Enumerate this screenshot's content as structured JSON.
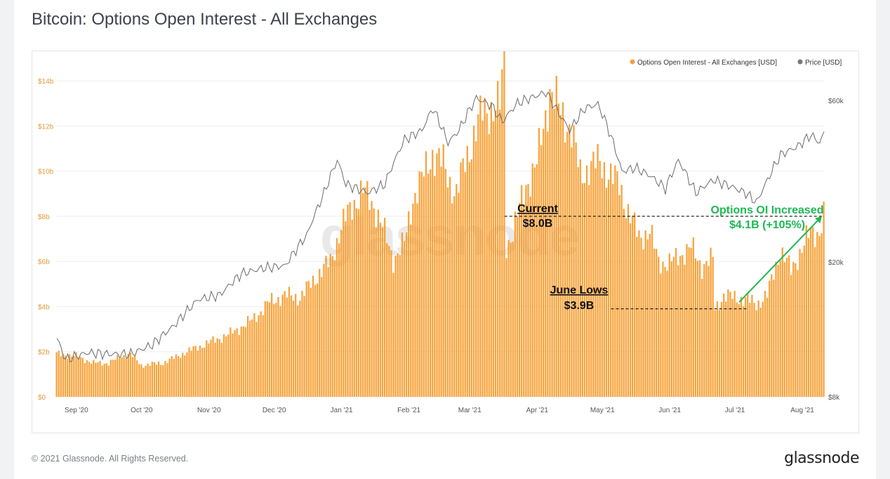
{
  "title": "Bitcoin: Options Open Interest - All Exchanges",
  "footer": {
    "copyright": "© 2021 Glassnode. All Rights Reserved.",
    "brand": "glassnode"
  },
  "watermark": "glassnode",
  "colors": {
    "bar": "#f7931a",
    "price_line": "#6b6b6b",
    "left_axis": "#e59a3b",
    "annotation_green": "#1db954",
    "grid": "#eeeeee"
  },
  "chart_data": {
    "type": "bar",
    "x_range": [
      "2020-09-01",
      "2021-08-20"
    ],
    "x_ticks": [
      {
        "date": "2020-09-10",
        "label": "Sep '20"
      },
      {
        "date": "2020-10-10",
        "label": "Oct '20"
      },
      {
        "date": "2020-11-10",
        "label": "Nov '20"
      },
      {
        "date": "2020-12-10",
        "label": "Dec '20"
      },
      {
        "date": "2021-01-10",
        "label": "Jan '21"
      },
      {
        "date": "2021-02-10",
        "label": "Feb '21"
      },
      {
        "date": "2021-03-10",
        "label": "Mar '21"
      },
      {
        "date": "2021-04-10",
        "label": "Apr '21"
      },
      {
        "date": "2021-05-10",
        "label": "May '21"
      },
      {
        "date": "2021-06-10",
        "label": "Jun '21"
      },
      {
        "date": "2021-07-10",
        "label": "Jul '21"
      },
      {
        "date": "2021-08-10",
        "label": "Aug '21"
      }
    ],
    "y_left": {
      "range": [
        0,
        15
      ],
      "ticks": [
        {
          "value": 0,
          "label": "$0"
        },
        {
          "value": 2,
          "label": "$2b"
        },
        {
          "value": 4,
          "label": "$4b"
        },
        {
          "value": 6,
          "label": "$6b"
        },
        {
          "value": 8,
          "label": "$8b"
        },
        {
          "value": 10,
          "label": "$10b"
        },
        {
          "value": 12,
          "label": "$12b"
        },
        {
          "value": 14,
          "label": "$14b"
        }
      ]
    },
    "y_right": {
      "scale": "log",
      "range": [
        8000,
        80000
      ],
      "ticks": [
        {
          "value": 8000,
          "label": "$8k"
        },
        {
          "value": 20000,
          "label": "$20k"
        },
        {
          "value": 60000,
          "label": "$60k"
        }
      ]
    },
    "grid": true,
    "legend_position": "top-right",
    "series": [
      {
        "name": "Options Open Interest - All Exchanges [USD]",
        "kind": "bar",
        "axis": "left",
        "unit": "billion USD",
        "values_daily_from": "2020-09-01",
        "keypoints": [
          [
            "2020-09-01",
            1.9
          ],
          [
            "2020-09-10",
            1.8
          ],
          [
            "2020-09-18",
            1.5
          ],
          [
            "2020-09-25",
            1.5
          ],
          [
            "2020-10-01",
            1.8
          ],
          [
            "2020-10-05",
            1.9
          ],
          [
            "2020-10-10",
            1.4
          ],
          [
            "2020-10-20",
            1.5
          ],
          [
            "2020-10-31",
            2.0
          ],
          [
            "2020-11-10",
            2.4
          ],
          [
            "2020-11-20",
            2.8
          ],
          [
            "2020-11-30",
            3.4
          ],
          [
            "2020-12-08",
            4.2
          ],
          [
            "2020-12-15",
            4.5
          ],
          [
            "2020-12-22",
            4.4
          ],
          [
            "2020-12-31",
            5.5
          ],
          [
            "2021-01-05",
            6.0
          ],
          [
            "2021-01-10",
            7.5
          ],
          [
            "2021-01-15",
            8.5
          ],
          [
            "2021-01-20",
            9.1
          ],
          [
            "2021-01-25",
            8.5
          ],
          [
            "2021-01-29",
            7.5
          ],
          [
            "2021-02-03",
            6.1
          ],
          [
            "2021-02-08",
            6.8
          ],
          [
            "2021-02-12",
            8.8
          ],
          [
            "2021-02-16",
            9.6
          ],
          [
            "2021-02-21",
            10.8
          ],
          [
            "2021-02-26",
            10.3
          ],
          [
            "2021-03-01",
            9.5
          ],
          [
            "2021-03-04",
            9.0
          ],
          [
            "2021-03-08",
            10.4
          ],
          [
            "2021-03-12",
            11.6
          ],
          [
            "2021-03-16",
            12.6
          ],
          [
            "2021-03-20",
            12.8
          ],
          [
            "2021-03-24",
            12.9
          ],
          [
            "2021-03-26",
            14.9
          ],
          [
            "2021-03-27",
            6.7
          ],
          [
            "2021-03-30",
            7.3
          ],
          [
            "2021-04-05",
            9.4
          ],
          [
            "2021-04-10",
            10.3
          ],
          [
            "2021-04-16",
            13.6
          ],
          [
            "2021-04-21",
            12.6
          ],
          [
            "2021-04-26",
            11.8
          ],
          [
            "2021-04-30",
            9.8
          ],
          [
            "2021-05-04",
            10.2
          ],
          [
            "2021-05-09",
            10.4
          ],
          [
            "2021-05-14",
            9.8
          ],
          [
            "2021-05-18",
            9.4
          ],
          [
            "2021-05-22",
            8.2
          ],
          [
            "2021-05-27",
            7.1
          ],
          [
            "2021-06-01",
            7.3
          ],
          [
            "2021-06-05",
            6.0
          ],
          [
            "2021-06-10",
            5.9
          ],
          [
            "2021-06-15",
            6.3
          ],
          [
            "2021-06-20",
            6.6
          ],
          [
            "2021-06-25",
            5.8
          ],
          [
            "2021-06-30",
            6.1
          ],
          [
            "2021-07-01",
            3.9
          ],
          [
            "2021-07-05",
            4.5
          ],
          [
            "2021-07-10",
            4.4
          ],
          [
            "2021-07-16",
            4.3
          ],
          [
            "2021-07-20",
            4.1
          ],
          [
            "2021-07-25",
            4.5
          ],
          [
            "2021-07-31",
            6.5
          ],
          [
            "2021-08-05",
            5.6
          ],
          [
            "2021-08-09",
            6.4
          ],
          [
            "2021-08-14",
            7.3
          ],
          [
            "2021-08-18",
            7.3
          ],
          [
            "2021-08-20",
            8.0
          ]
        ]
      },
      {
        "name": "Price [USD]",
        "kind": "line",
        "axis": "right",
        "unit": "USD",
        "keypoints": [
          [
            "2020-09-01",
            11900
          ],
          [
            "2020-09-05",
            10300
          ],
          [
            "2020-09-15",
            10800
          ],
          [
            "2020-09-25",
            10700
          ],
          [
            "2020-10-05",
            10700
          ],
          [
            "2020-10-15",
            11400
          ],
          [
            "2020-10-25",
            13000
          ],
          [
            "2020-11-05",
            15500
          ],
          [
            "2020-11-15",
            16000
          ],
          [
            "2020-11-25",
            18500
          ],
          [
            "2020-12-05",
            19200
          ],
          [
            "2020-12-15",
            19500
          ],
          [
            "2020-12-25",
            24000
          ],
          [
            "2021-01-02",
            32000
          ],
          [
            "2021-01-08",
            40000
          ],
          [
            "2021-01-12",
            34000
          ],
          [
            "2021-01-22",
            32000
          ],
          [
            "2021-01-30",
            34000
          ],
          [
            "2021-02-08",
            46000
          ],
          [
            "2021-02-16",
            49000
          ],
          [
            "2021-02-21",
            57000
          ],
          [
            "2021-02-28",
            45000
          ],
          [
            "2021-03-05",
            49000
          ],
          [
            "2021-03-13",
            61000
          ],
          [
            "2021-03-20",
            58000
          ],
          [
            "2021-03-25",
            52000
          ],
          [
            "2021-04-01",
            59000
          ],
          [
            "2021-04-14",
            63500
          ],
          [
            "2021-04-20",
            55000
          ],
          [
            "2021-04-25",
            49000
          ],
          [
            "2021-05-02",
            57000
          ],
          [
            "2021-05-08",
            58500
          ],
          [
            "2021-05-13",
            49000
          ],
          [
            "2021-05-19",
            37000
          ],
          [
            "2021-05-25",
            38000
          ],
          [
            "2021-06-01",
            36000
          ],
          [
            "2021-06-08",
            33000
          ],
          [
            "2021-06-14",
            40000
          ],
          [
            "2021-06-22",
            32000
          ],
          [
            "2021-06-30",
            35000
          ],
          [
            "2021-07-08",
            33500
          ],
          [
            "2021-07-15",
            32000
          ],
          [
            "2021-07-20",
            30000
          ],
          [
            "2021-07-25",
            35000
          ],
          [
            "2021-07-31",
            41500
          ],
          [
            "2021-08-08",
            44000
          ],
          [
            "2021-08-14",
            47500
          ],
          [
            "2021-08-18",
            45000
          ],
          [
            "2021-08-20",
            48000
          ]
        ]
      }
    ],
    "annotations": [
      {
        "id": "current",
        "title": "Current",
        "value": "$8.0B",
        "level": 8.0,
        "from_date": "2021-03-26"
      },
      {
        "id": "june-lows",
        "title": "June Lows",
        "value": "$3.9B",
        "level": 3.9,
        "from_date": "2021-05-14"
      },
      {
        "id": "increase",
        "title": "Options OI Increased",
        "value": "$4.1B (+105%)",
        "from": [
          "2021-07-12",
          4.2
        ],
        "to": [
          "2021-08-19",
          8.0
        ]
      }
    ]
  }
}
